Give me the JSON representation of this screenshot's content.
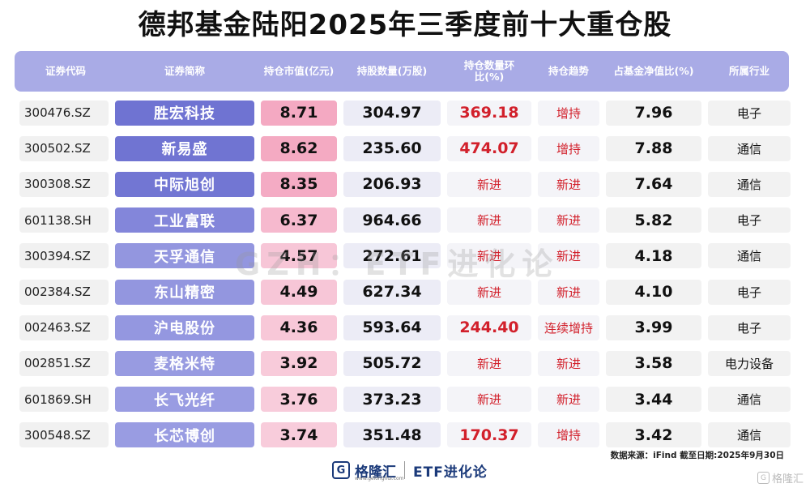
{
  "title": "德邦基金陆阳2025年三季度前十大重仓股",
  "headers": [
    "证券代码",
    "证券简称",
    "持仓市值(亿元)",
    "持股数量(万股)",
    "持仓数量环比(%)",
    "持仓趋势",
    "占基金净值比(%)",
    "所属行业"
  ],
  "rows": [
    {
      "code": "300476.SZ",
      "name": "胜宏科技",
      "market_value": "8.71",
      "shares": "304.97",
      "change": "369.18",
      "trend": "增持",
      "nav_pct": "7.96",
      "industry": "电子"
    },
    {
      "code": "300502.SZ",
      "name": "新易盛",
      "market_value": "8.62",
      "shares": "235.60",
      "change": "474.07",
      "trend": "增持",
      "nav_pct": "7.88",
      "industry": "通信"
    },
    {
      "code": "300308.SZ",
      "name": "中际旭创",
      "market_value": "8.35",
      "shares": "206.93",
      "change": "新进",
      "trend": "新进",
      "nav_pct": "7.64",
      "industry": "通信"
    },
    {
      "code": "601138.SH",
      "name": "工业富联",
      "market_value": "6.37",
      "shares": "964.66",
      "change": "新进",
      "trend": "新进",
      "nav_pct": "5.82",
      "industry": "电子"
    },
    {
      "code": "300394.SZ",
      "name": "天孚通信",
      "market_value": "4.57",
      "shares": "272.61",
      "change": "新进",
      "trend": "新进",
      "nav_pct": "4.18",
      "industry": "通信"
    },
    {
      "code": "002384.SZ",
      "name": "东山精密",
      "market_value": "4.49",
      "shares": "627.34",
      "change": "新进",
      "trend": "新进",
      "nav_pct": "4.10",
      "industry": "电子"
    },
    {
      "code": "002463.SZ",
      "name": "沪电股份",
      "market_value": "4.36",
      "shares": "593.64",
      "change": "244.40",
      "trend": "连续增持",
      "nav_pct": "3.99",
      "industry": "电子"
    },
    {
      "code": "002851.SZ",
      "name": "麦格米特",
      "market_value": "3.92",
      "shares": "505.72",
      "change": "新进",
      "trend": "新进",
      "nav_pct": "3.58",
      "industry": "电力设备"
    },
    {
      "code": "601869.SH",
      "name": "长飞光纤",
      "market_value": "3.76",
      "shares": "373.23",
      "change": "新进",
      "trend": "新进",
      "nav_pct": "3.44",
      "industry": "通信"
    },
    {
      "code": "300548.SZ",
      "name": "长芯博创",
      "market_value": "3.74",
      "shares": "351.48",
      "change": "170.37",
      "trend": "增持",
      "nav_pct": "3.42",
      "industry": "通信"
    }
  ],
  "bar_levels": [
    1.0,
    0.99,
    0.96,
    0.73,
    0.52,
    0.52,
    0.5,
    0.45,
    0.43,
    0.43
  ],
  "watermark": "GZH：ETF进化论",
  "source": "数据来源：iFind 截至日期:2025年9月30日",
  "footer": {
    "logo_glyph": "G",
    "logo_name": "格隆汇",
    "logo_url": "www.gelonghui.com",
    "brand2": "ETF进化论"
  },
  "corner_mark": "格隆汇",
  "colors": {
    "header_bg": "#a9abe6",
    "name_high": "#6f73d2",
    "name_low": "#b9bbee",
    "mv_high": "#f4a9c2",
    "mv_low": "#fbe6ee",
    "up_red": "#d2202b"
  }
}
